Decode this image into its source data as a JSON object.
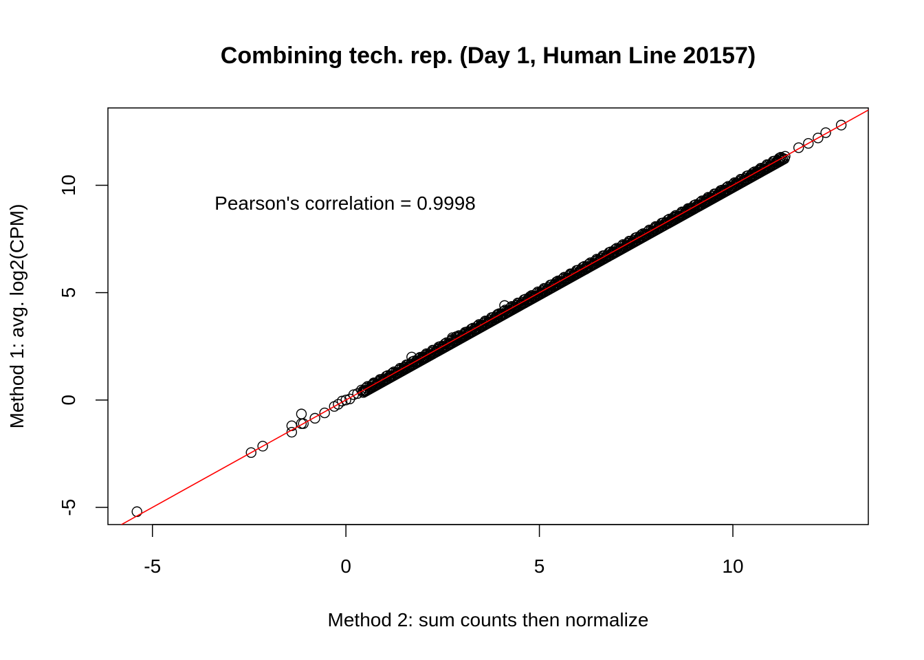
{
  "chart_data": {
    "type": "scatter",
    "title": "Combining tech. rep. (Day 1, Human Line 20157)",
    "xlabel": "Method 2: sum counts then normalize",
    "ylabel": "Method 1: avg. log2(CPM)",
    "xlim": [
      -6.15,
      13.5
    ],
    "ylim": [
      -5.8,
      13.6
    ],
    "xticks": [
      -5,
      0,
      5,
      10
    ],
    "yticks": [
      -5,
      0,
      5,
      10
    ],
    "xtick_labels": [
      "-5",
      "0",
      "5",
      "10"
    ],
    "ytick_labels": [
      "-5",
      "0",
      "5",
      "10"
    ],
    "annotation": "Pearson's correlation = 0.9998",
    "fit_line": {
      "intercept": 0,
      "slope": 1,
      "color": "#ff0000"
    },
    "point_style": {
      "shape": "open-circle",
      "color": "#000000"
    },
    "points": [
      [
        -5.4,
        -5.2
      ],
      [
        -2.45,
        -2.45
      ],
      [
        -2.15,
        -2.15
      ],
      [
        -1.4,
        -1.5
      ],
      [
        -1.4,
        -1.2
      ],
      [
        -1.15,
        -1.1
      ],
      [
        -1.15,
        -0.65
      ],
      [
        -1.1,
        -1.1
      ],
      [
        -0.8,
        -0.85
      ],
      [
        -0.55,
        -0.6
      ],
      [
        -0.3,
        -0.3
      ],
      [
        -0.2,
        -0.2
      ],
      [
        -0.1,
        -0.05
      ],
      [
        0.0,
        0.0
      ],
      [
        0.1,
        0.05
      ],
      [
        0.2,
        0.25
      ],
      [
        0.3,
        0.3
      ],
      [
        0.5,
        0.45
      ],
      [
        0.7,
        0.75
      ],
      [
        0.9,
        0.9
      ],
      [
        1.2,
        1.25
      ],
      [
        1.5,
        1.5
      ],
      [
        1.7,
        2.0
      ],
      [
        2.0,
        2.0
      ],
      [
        2.4,
        2.4
      ],
      [
        2.5,
        2.5
      ],
      [
        2.75,
        2.9
      ],
      [
        2.85,
        2.95
      ],
      [
        3.1,
        3.1
      ],
      [
        3.5,
        3.5
      ],
      [
        3.9,
        3.95
      ],
      [
        4.1,
        4.4
      ],
      [
        4.4,
        4.4
      ],
      [
        4.8,
        4.8
      ],
      [
        5.1,
        5.1
      ],
      [
        5.5,
        5.5
      ],
      [
        5.8,
        5.85
      ],
      [
        6.2,
        6.1
      ],
      [
        6.5,
        6.5
      ],
      [
        6.9,
        6.9
      ],
      [
        7.3,
        7.3
      ],
      [
        7.7,
        7.7
      ],
      [
        8.1,
        8.1
      ],
      [
        8.5,
        8.5
      ],
      [
        8.9,
        8.9
      ],
      [
        9.3,
        9.3
      ],
      [
        9.7,
        9.7
      ],
      [
        10.1,
        10.1
      ],
      [
        10.5,
        10.5
      ],
      [
        10.7,
        10.7
      ],
      [
        11.0,
        11.0
      ],
      [
        11.2,
        11.2
      ],
      [
        11.35,
        11.35
      ],
      [
        11.7,
        11.75
      ],
      [
        11.95,
        11.95
      ],
      [
        12.2,
        12.2
      ],
      [
        12.4,
        12.45
      ],
      [
        12.8,
        12.8
      ]
    ],
    "dense_band": {
      "x_from": 0.4,
      "x_to": 11.3
    }
  }
}
